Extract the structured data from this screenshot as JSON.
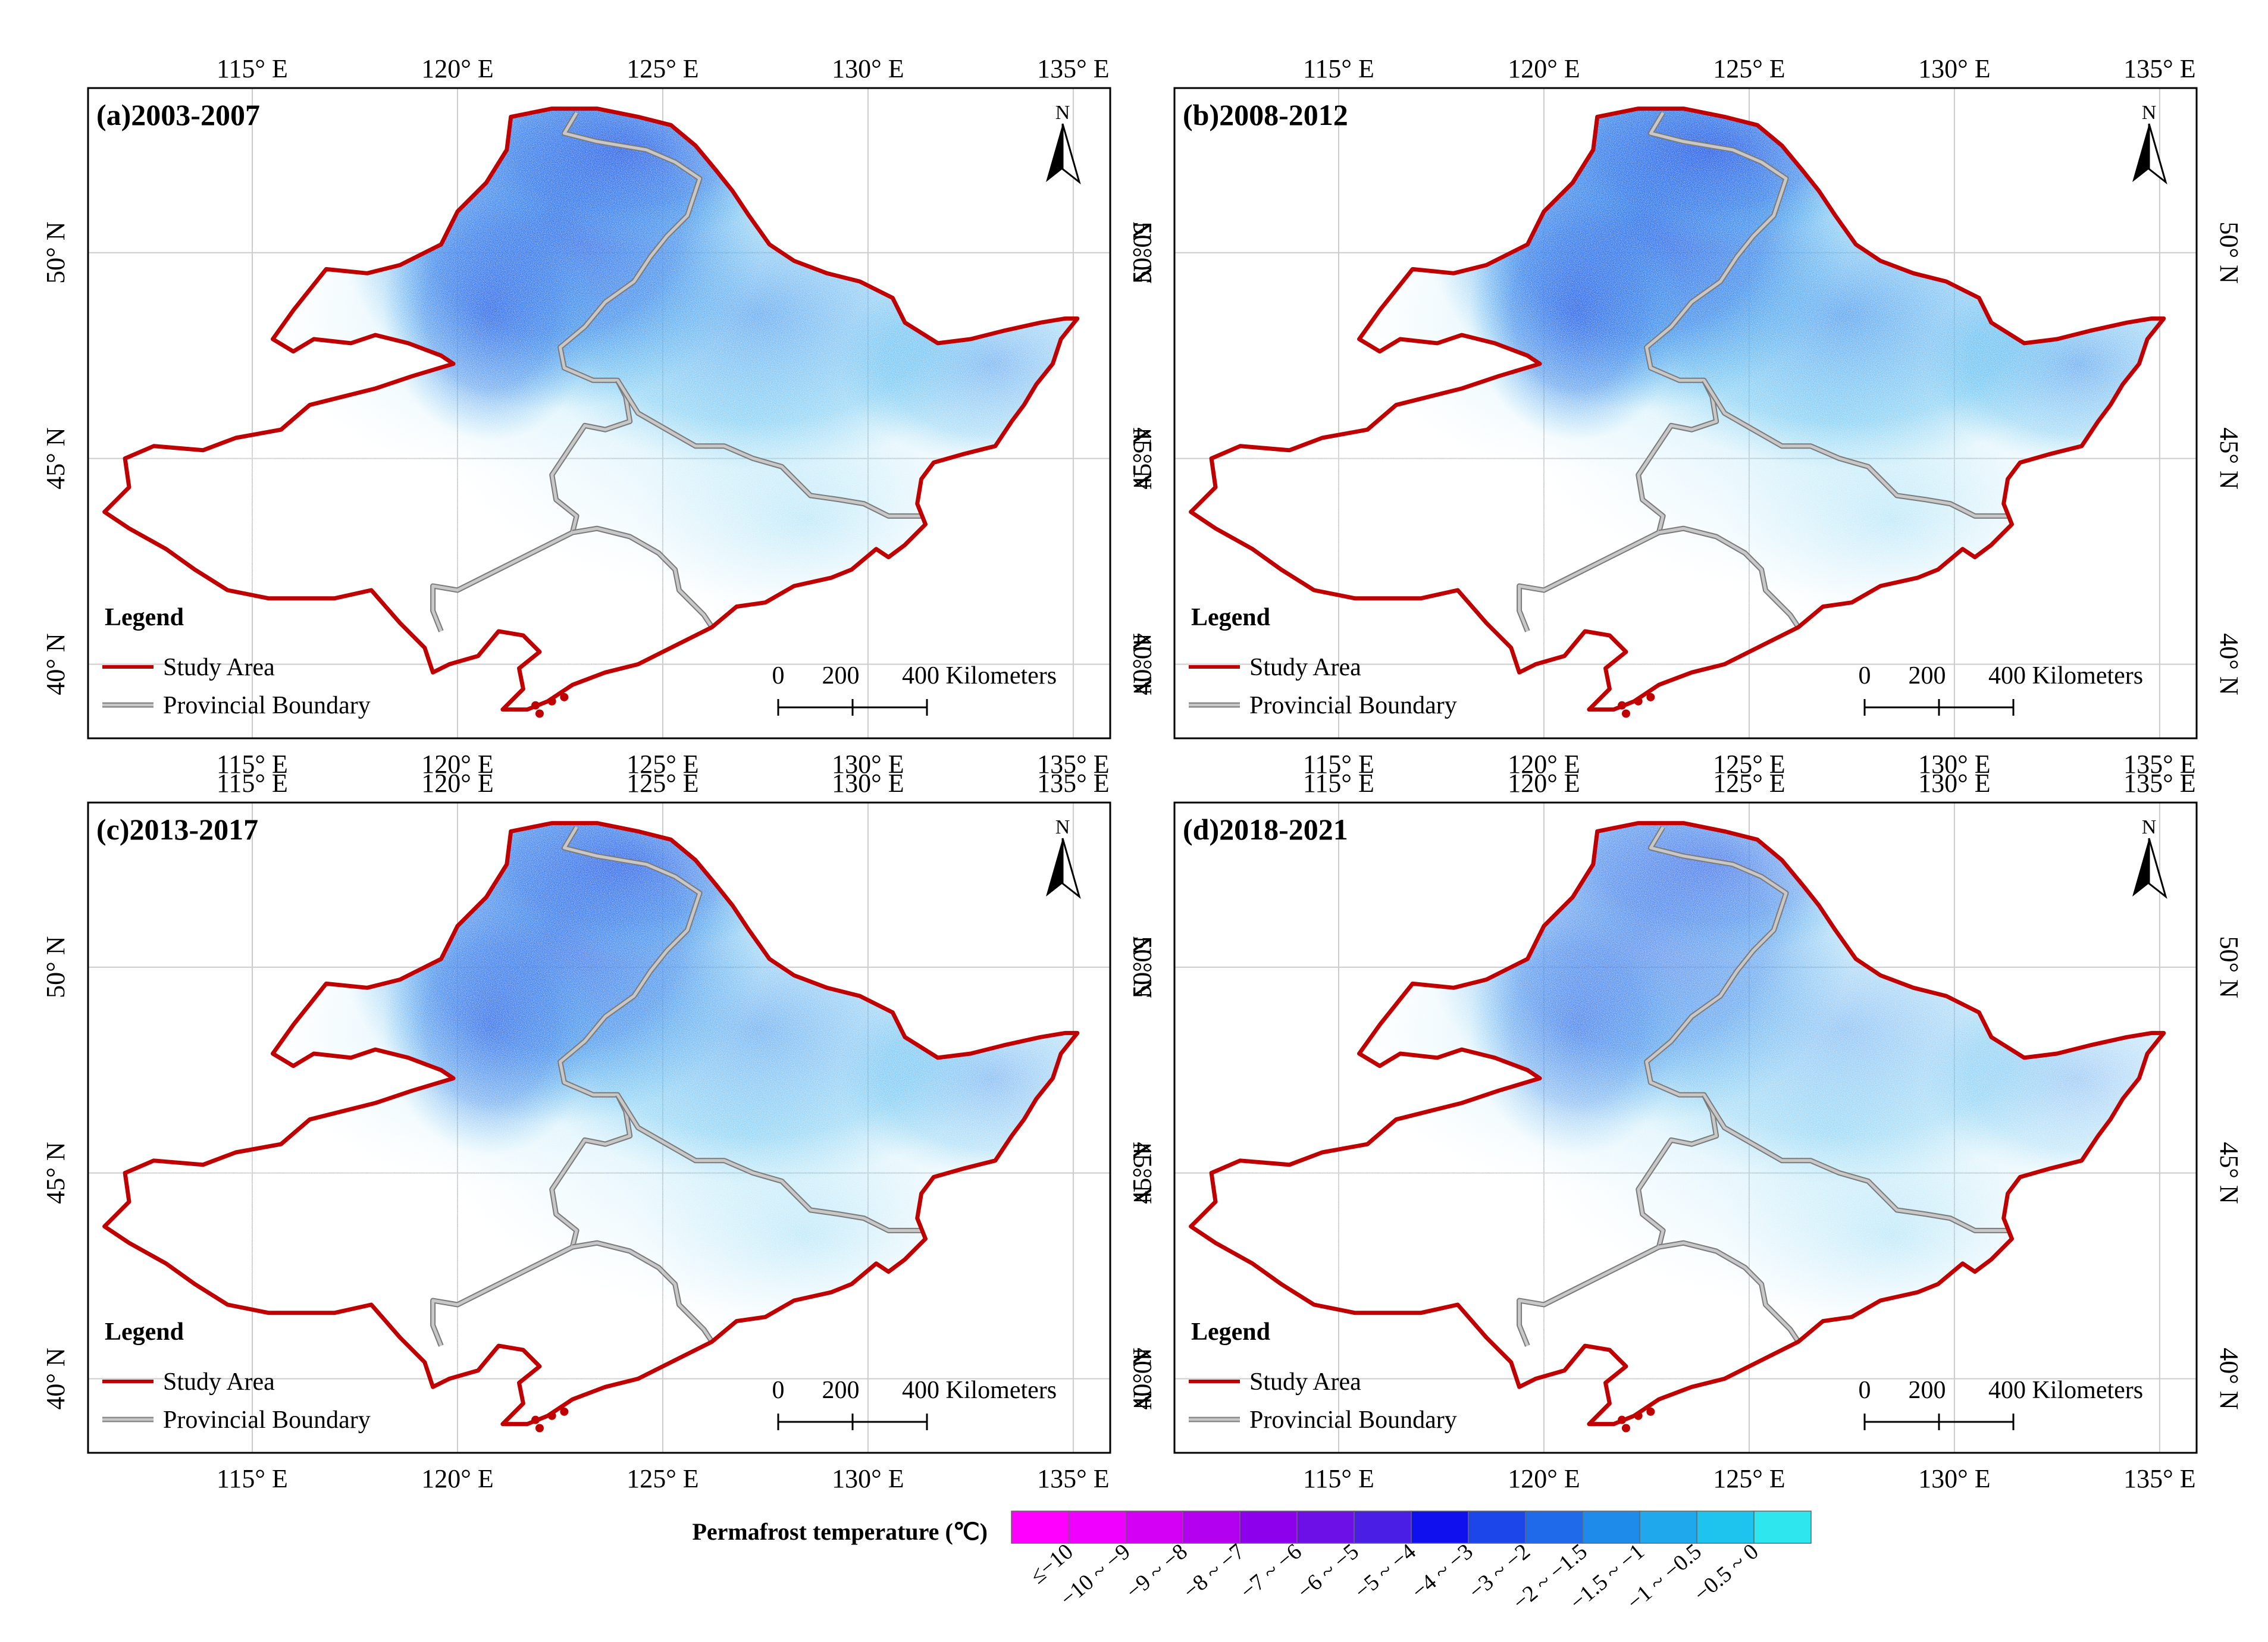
{
  "figure": {
    "colorbar_title": "Permafrost temperature (℃)",
    "colorbar_classes": [
      {
        "label": "≤−10",
        "color": "#ff00ff"
      },
      {
        "label": "−10 ~ −9",
        "color": "#ef00ff"
      },
      {
        "label": "−9 ~ −8",
        "color": "#d400f5"
      },
      {
        "label": "−8 ~ −7",
        "color": "#b300f0"
      },
      {
        "label": "−7 ~ −6",
        "color": "#8c00ec"
      },
      {
        "label": "−6 ~ −5",
        "color": "#6d10e8"
      },
      {
        "label": "−5 ~ −4",
        "color": "#4b1ee6"
      },
      {
        "label": "−4 ~ −3",
        "color": "#1010ef"
      },
      {
        "label": "−3 ~ −2",
        "color": "#1c45ea"
      },
      {
        "label": "−2 ~ −1.5",
        "color": "#1f6aea"
      },
      {
        "label": "−1.5 ~ −1",
        "color": "#1e8aea"
      },
      {
        "label": "−1 ~ −0.5",
        "color": "#20a8ec"
      },
      {
        "label": "−0.5 ~ 0",
        "color": "#1fc4ee"
      },
      {
        "label": "",
        "color": "#2de6ee"
      }
    ]
  },
  "common": {
    "lon_labels": [
      "115° E",
      "120° E",
      "125° E",
      "130° E",
      "135° E"
    ],
    "lat_labels": [
      "40° N",
      "45° N",
      "50° N"
    ],
    "north_letter": "N",
    "legend_title": "Legend",
    "legend_items": [
      "Study Area",
      "Provincial Boundary"
    ],
    "scale_ticks": [
      "0",
      "200",
      "400 Kilometers"
    ],
    "colors": {
      "study_area": "#c00000",
      "provincial_boundary": "#a0a0a0",
      "grid": "#cccccc"
    }
  },
  "panels": [
    {
      "id": "a",
      "title": "(a)2003-2007",
      "cold_strength": 1.0
    },
    {
      "id": "b",
      "title": "(b)2008-2012",
      "cold_strength": 1.1
    },
    {
      "id": "c",
      "title": "(c)2013-2017",
      "cold_strength": 0.9
    },
    {
      "id": "d",
      "title": "(d)2018-2021",
      "cold_strength": 0.7
    }
  ]
}
